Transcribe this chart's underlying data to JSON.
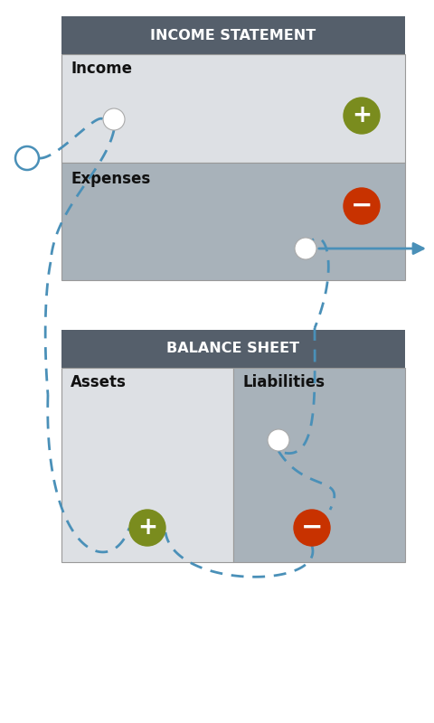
{
  "bg_color": "#ffffff",
  "header_color": "#555f6b",
  "income_section_color": "#dde0e4",
  "expense_section_color": "#a8b2ba",
  "assets_color": "#dde0e4",
  "liabilities_color": "#a8b2ba",
  "header_text_color": "#ffffff",
  "label_text_color": "#111111",
  "plus_color": "#7a8c1e",
  "minus_color": "#c83200",
  "arrow_color": "#4a90b8",
  "dashed_color": "#4a90b8",
  "title_income": "INCOME STATEMENT",
  "title_balance": "BALANCE SHEET",
  "label_income": "Income",
  "label_expense": "Expenses",
  "label_assets": "Assets",
  "label_liabilities": "Liabilities",
  "fig_width": 4.8,
  "fig_height": 8.0
}
